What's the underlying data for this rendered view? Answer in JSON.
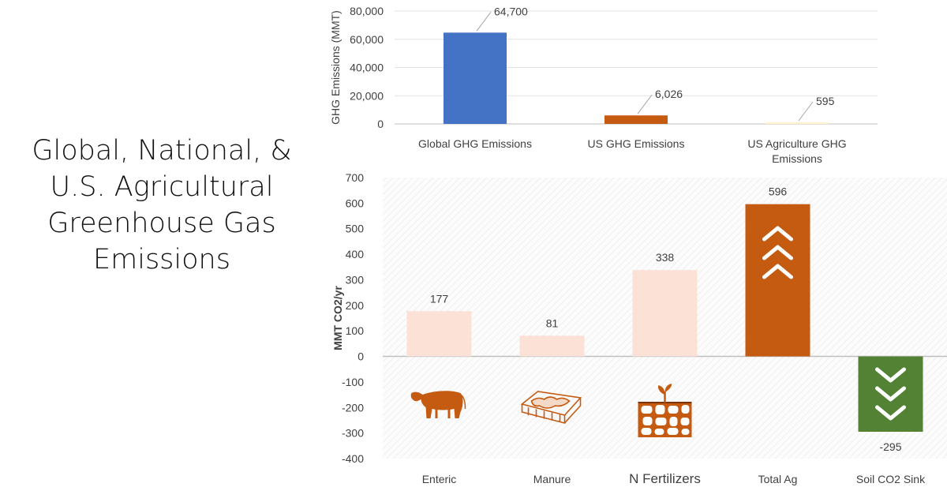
{
  "slide": {
    "title_lines": [
      "Global, National, &",
      "U.S. Agricultural",
      "Greenhouse Gas",
      "Emissions"
    ]
  },
  "chart_data": [
    {
      "type": "bar",
      "categories": [
        [
          "Global GHG Emissions"
        ],
        [
          "US GHG Emissions"
        ],
        [
          "US Agriculture GHG",
          "Emissions"
        ]
      ],
      "values": [
        64700,
        6026,
        595
      ],
      "data_labels": [
        "64,700",
        "6,026",
        "595"
      ],
      "yticks": [
        "0",
        "20,000",
        "40,000",
        "60,000",
        "80,000"
      ],
      "title": "",
      "xlabel": "",
      "ylabel": "GHG Emissions (MMT)",
      "ylim": [
        0,
        80000
      ],
      "grid": true,
      "colors": [
        "#4472C4",
        "#C55A11",
        "#FFF2CC"
      ]
    },
    {
      "type": "bar",
      "categories": [
        "Enteric",
        "Manure",
        "N Fertilizers",
        "Total Ag",
        "Soil CO2 Sink"
      ],
      "values": [
        177,
        81,
        338,
        596,
        -295
      ],
      "data_labels": [
        "177",
        "81",
        "338",
        "596",
        "-295"
      ],
      "yticks": [
        "-400",
        "-300",
        "-200",
        "-100",
        "0",
        "100",
        "200",
        "300",
        "400",
        "500",
        "600",
        "700"
      ],
      "title": "",
      "xlabel": "",
      "ylabel": "MMT CO2/yr",
      "ylim": [
        -400,
        700
      ],
      "grid": false,
      "colors": [
        "#FBE1D6",
        "#FBE1D6",
        "#FBE1D6",
        "#C55A11",
        "#548235"
      ],
      "icons": [
        "cow-icon",
        "manure-pile-icon",
        "fertilizer-soil-icon"
      ],
      "arrows": [
        "up-chevrons-icon",
        "down-chevrons-icon"
      ]
    }
  ]
}
